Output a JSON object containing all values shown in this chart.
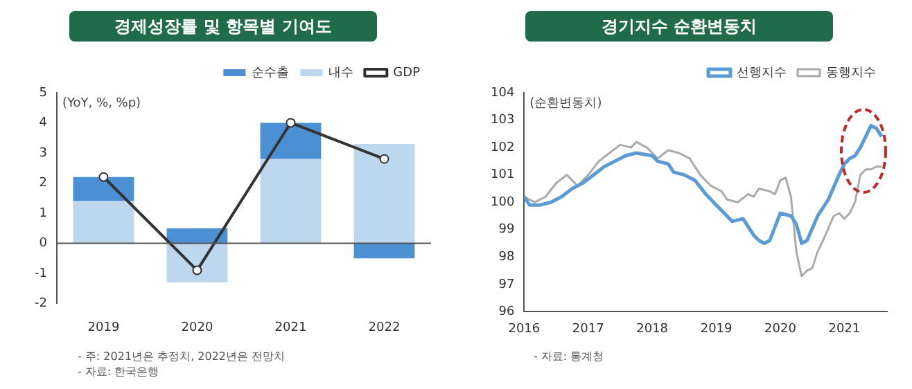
{
  "chart_data": [
    {
      "type": "bar",
      "title": "경제성장률 및 항목별 기여도",
      "ylabel": "(YoY, %, %p)",
      "categories": [
        "2019",
        "2020",
        "2021",
        "2022"
      ],
      "stacked": true,
      "ylim": [
        -2,
        5
      ],
      "yticks": [
        -2,
        -1,
        0,
        1,
        2,
        3,
        4,
        5
      ],
      "legend": "top right",
      "series": [
        {
          "name": "내수",
          "color": "#bdd7ee",
          "values": [
            1.4,
            -1.3,
            2.8,
            3.3
          ]
        },
        {
          "name": "순수출",
          "color": "#4a90d2",
          "values": [
            0.8,
            0.5,
            1.2,
            -0.5
          ]
        },
        {
          "name": "GDP",
          "type": "line",
          "color": "#333333",
          "marker": "circle",
          "values": [
            2.2,
            -0.9,
            4.0,
            2.8
          ]
        }
      ],
      "annotations": [
        "- 주: 2021년은 추정치, 2022년은 전망치",
        "- 자료: 한국은행"
      ]
    },
    {
      "type": "line",
      "title": "경기지수 순환변동치",
      "ylabel": "(순환변동치)",
      "xlim": [
        "2016-01",
        "2021-09"
      ],
      "xticks": [
        "2016",
        "2017",
        "2018",
        "2019",
        "2020",
        "2021"
      ],
      "ylim": [
        96,
        104
      ],
      "yticks": [
        96,
        97,
        98,
        99,
        100,
        101,
        102,
        103,
        104
      ],
      "legend": "top right",
      "series": [
        {
          "name": "선행지수",
          "color": "#5b9bd5",
          "x": [
            "2016-01",
            "2016-02",
            "2016-04",
            "2016-06",
            "2016-08",
            "2016-10",
            "2016-12",
            "2017-02",
            "2017-04",
            "2017-06",
            "2017-08",
            "2017-10",
            "2018-01",
            "2018-02",
            "2018-04",
            "2018-05",
            "2018-07",
            "2018-09",
            "2018-11",
            "2019-01",
            "2019-03",
            "2019-04",
            "2019-06",
            "2019-08",
            "2019-09",
            "2019-10",
            "2019-11",
            "2019-12",
            "2020-01",
            "2020-03",
            "2020-04",
            "2020-05",
            "2020-06",
            "2020-08",
            "2020-10",
            "2020-12",
            "2021-01",
            "2021-02",
            "2021-03",
            "2021-04",
            "2021-05",
            "2021-06",
            "2021-07",
            "2021-08"
          ],
          "values": [
            100.2,
            99.9,
            99.9,
            100.0,
            100.2,
            100.5,
            100.7,
            101.0,
            101.3,
            101.5,
            101.7,
            101.8,
            101.7,
            101.5,
            101.4,
            101.1,
            101.0,
            100.8,
            100.3,
            99.9,
            99.5,
            99.3,
            99.4,
            98.8,
            98.6,
            98.5,
            98.6,
            99.1,
            99.6,
            99.5,
            99.2,
            98.5,
            98.6,
            99.5,
            100.1,
            101.0,
            101.4,
            101.6,
            101.7,
            102.0,
            102.4,
            102.8,
            102.7,
            102.4
          ]
        },
        {
          "name": "동행지수",
          "color": "#aaaaaa",
          "x": [
            "2016-01",
            "2016-03",
            "2016-05",
            "2016-07",
            "2016-09",
            "2016-11",
            "2017-01",
            "2017-03",
            "2017-05",
            "2017-07",
            "2017-09",
            "2017-10",
            "2017-12",
            "2018-02",
            "2018-04",
            "2018-06",
            "2018-08",
            "2018-10",
            "2018-12",
            "2019-02",
            "2019-03",
            "2019-05",
            "2019-07",
            "2019-08",
            "2019-09",
            "2019-11",
            "2019-12",
            "2020-01",
            "2020-02",
            "2020-03",
            "2020-04",
            "2020-05",
            "2020-06",
            "2020-07",
            "2020-08",
            "2020-09",
            "2020-11",
            "2020-12",
            "2021-01",
            "2021-02",
            "2021-03",
            "2021-04",
            "2021-05",
            "2021-06",
            "2021-07",
            "2021-08"
          ],
          "values": [
            100.2,
            100.0,
            100.2,
            100.7,
            101.0,
            100.6,
            101.0,
            101.5,
            101.8,
            102.1,
            102.0,
            102.2,
            102.0,
            101.6,
            101.9,
            101.8,
            101.6,
            101.0,
            100.6,
            100.4,
            100.1,
            100.0,
            100.3,
            100.2,
            100.5,
            100.4,
            100.3,
            100.8,
            100.9,
            100.2,
            98.2,
            97.3,
            97.5,
            97.6,
            98.2,
            98.6,
            99.5,
            99.6,
            99.4,
            99.6,
            100.0,
            101.0,
            101.2,
            101.2,
            101.3,
            101.3
          ]
        }
      ],
      "annotations": [
        "- 자료: 통계청"
      ]
    }
  ]
}
